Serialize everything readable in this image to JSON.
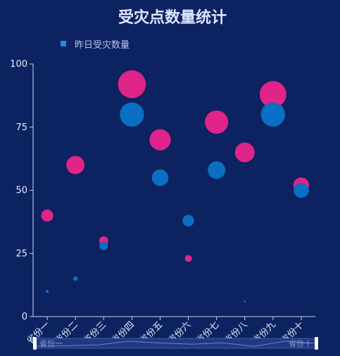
{
  "chart_data": {
    "type": "scatter",
    "title": "受灾点数量统计",
    "categories": [
      "省份一",
      "省份二",
      "省份三",
      "省份四",
      "省份五",
      "省份六",
      "省份七",
      "省份八",
      "省份九",
      "省份十"
    ],
    "series": [
      {
        "name": "",
        "color": "#0a6fc2",
        "values": [
          10,
          15,
          28,
          80,
          55,
          38,
          58,
          6,
          80,
          50
        ]
      },
      {
        "name": "昨日受灾数量",
        "color": "#e0248a",
        "values": [
          40,
          60,
          30,
          92,
          70,
          23,
          77,
          65,
          88,
          52
        ]
      }
    ],
    "ylim": [
      0,
      100
    ],
    "yticks": [
      0,
      25,
      50,
      75,
      100
    ],
    "legend": "top-left",
    "grid": false,
    "bubble_size": "proportional to value",
    "data_zoom": {
      "start_label": "省份一",
      "end_label": "省份十"
    }
  }
}
